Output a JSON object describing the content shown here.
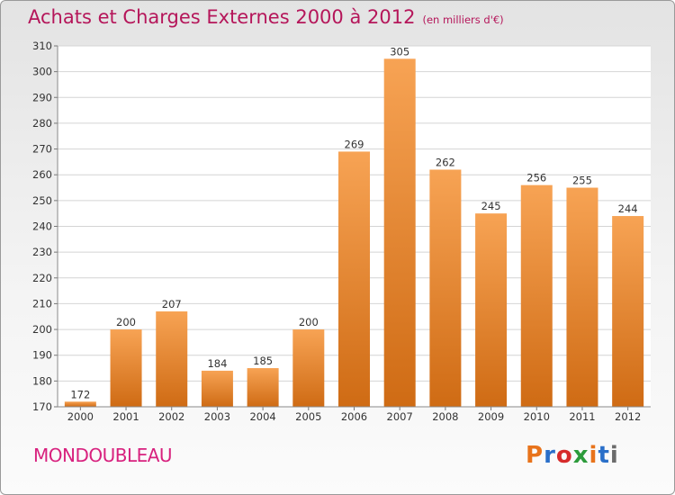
{
  "header": {
    "title": "Achats et Charges Externes 2000 à 2012",
    "unit": "(en milliers d'€)"
  },
  "footer": {
    "town": "MONDOUBLEAU",
    "logo": "Proxiti",
    "logo_colors": [
      "#e8731b",
      "#2a6fc9",
      "#d62b2b",
      "#2c9b3b",
      "#e8731b",
      "#2a6fc9",
      "#6b6b6b"
    ]
  },
  "colors": {
    "title": "#b5165a",
    "town": "#d8217e",
    "bar_top": "#f7a354",
    "bar_bottom": "#cf6b14",
    "grid": "#d4d4d4",
    "axis_text": "#333333"
  },
  "chart_data": {
    "type": "bar",
    "title": "Achats et Charges Externes 2000 à 2012",
    "subtitle": "(en milliers d'€)",
    "xlabel": "",
    "ylabel": "",
    "categories": [
      "2000",
      "2001",
      "2002",
      "2003",
      "2004",
      "2005",
      "2006",
      "2007",
      "2008",
      "2009",
      "2010",
      "2011",
      "2012"
    ],
    "values": [
      172,
      200,
      207,
      184,
      185,
      200,
      269,
      305,
      262,
      245,
      256,
      255,
      244
    ],
    "ylim": [
      170,
      310
    ],
    "yticks": [
      170,
      180,
      190,
      200,
      210,
      220,
      230,
      240,
      250,
      260,
      270,
      280,
      290,
      300,
      310
    ],
    "grid": true,
    "data_labels": true,
    "legend": "none"
  }
}
